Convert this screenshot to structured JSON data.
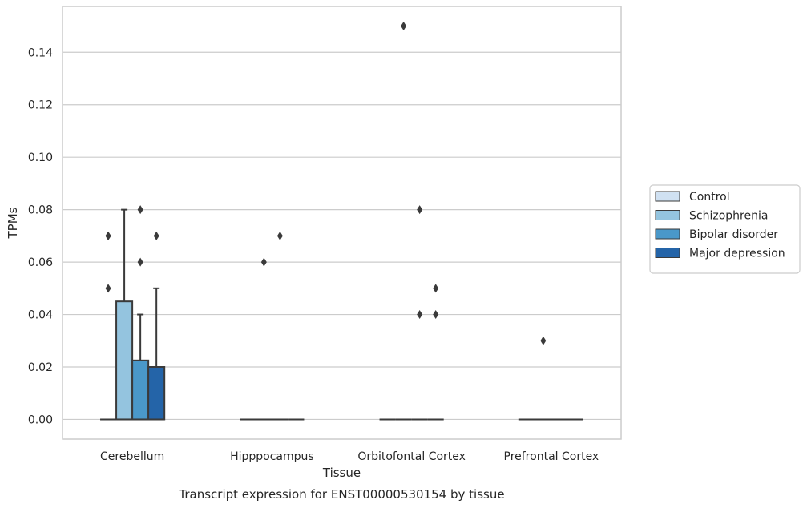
{
  "chart_data": {
    "type": "box",
    "title": "Transcript expression for ENST00000530154 by tissue",
    "xlabel": "Tissue",
    "ylabel": "TPMs",
    "ylim": [
      -0.0075,
      0.1575
    ],
    "yticks": [
      "0.00",
      "0.02",
      "0.04",
      "0.06",
      "0.08",
      "0.10",
      "0.12",
      "0.14"
    ],
    "grid": "horizontal",
    "legend_position": "right",
    "categories": [
      "Cerebellum",
      "Hipppocampus",
      "Orbitofontal Cortex",
      "Prefrontal Cortex"
    ],
    "series": [
      {
        "name": "Control",
        "color": "#d0e1f2",
        "boxes": [
          {
            "q1": 0,
            "median": 0,
            "q3": 0,
            "whisker_low": 0,
            "whisker_high": 0,
            "outliers": [
              0.05,
              0.07,
              0.07
            ]
          },
          {
            "q1": 0,
            "median": 0,
            "q3": 0,
            "whisker_low": 0,
            "whisker_high": 0,
            "outliers": []
          },
          {
            "q1": 0,
            "median": 0,
            "q3": 0,
            "whisker_low": 0,
            "whisker_high": 0,
            "outliers": []
          },
          {
            "q1": 0,
            "median": 0,
            "q3": 0,
            "whisker_low": 0,
            "whisker_high": 0,
            "outliers": []
          }
        ]
      },
      {
        "name": "Schizophrenia",
        "color": "#94c4df",
        "boxes": [
          {
            "q1": 0,
            "median": 0,
            "q3": 0.045,
            "whisker_low": 0,
            "whisker_high": 0.08,
            "outliers": []
          },
          {
            "q1": 0,
            "median": 0,
            "q3": 0,
            "whisker_low": 0,
            "whisker_high": 0,
            "outliers": [
              0.06
            ]
          },
          {
            "q1": 0,
            "median": 0,
            "q3": 0,
            "whisker_low": 0,
            "whisker_high": 0,
            "outliers": [
              0.15
            ]
          },
          {
            "q1": 0,
            "median": 0,
            "q3": 0,
            "whisker_low": 0,
            "whisker_high": 0,
            "outliers": [
              0.03
            ]
          }
        ]
      },
      {
        "name": "Bipolar disorder",
        "color": "#4a98c9",
        "boxes": [
          {
            "q1": 0,
            "median": 0,
            "q3": 0.0225,
            "whisker_low": 0,
            "whisker_high": 0.04,
            "outliers": [
              0.06,
              0.08
            ]
          },
          {
            "q1": 0,
            "median": 0,
            "q3": 0,
            "whisker_low": 0,
            "whisker_high": 0,
            "outliers": [
              0.07
            ]
          },
          {
            "q1": 0,
            "median": 0,
            "q3": 0,
            "whisker_low": 0,
            "whisker_high": 0,
            "outliers": [
              0.04,
              0.08
            ]
          },
          {
            "q1": 0,
            "median": 0,
            "q3": 0,
            "whisker_low": 0,
            "whisker_high": 0,
            "outliers": []
          }
        ]
      },
      {
        "name": "Major depression",
        "color": "#2464a8",
        "boxes": [
          {
            "q1": 0,
            "median": 0,
            "q3": 0.02,
            "whisker_low": 0,
            "whisker_high": 0.05,
            "outliers": [
              0.07
            ]
          },
          {
            "q1": 0,
            "median": 0,
            "q3": 0,
            "whisker_low": 0,
            "whisker_high": 0,
            "outliers": []
          },
          {
            "q1": 0,
            "median": 0,
            "q3": 0,
            "whisker_low": 0,
            "whisker_high": 0,
            "outliers": [
              0.04,
              0.05
            ]
          },
          {
            "q1": 0,
            "median": 0,
            "q3": 0,
            "whisker_low": 0,
            "whisker_high": 0,
            "outliers": []
          }
        ]
      }
    ]
  }
}
